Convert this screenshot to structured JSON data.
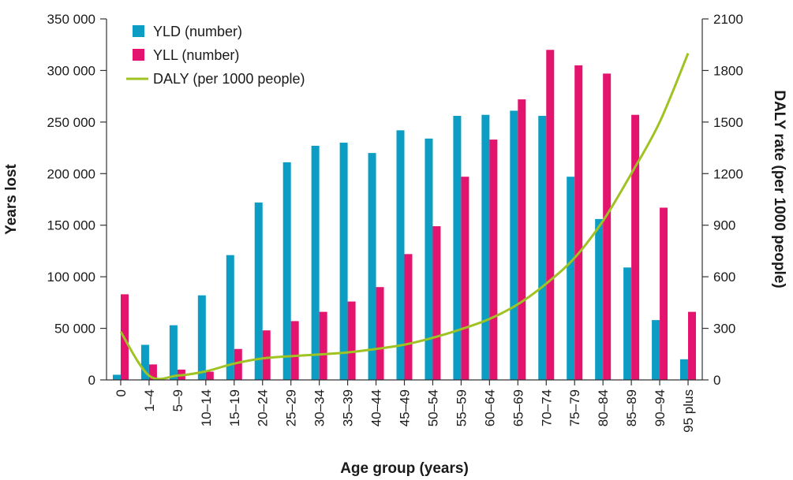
{
  "chart_data": {
    "type": "bar",
    "categories": [
      "0",
      "1–4",
      "5–9",
      "10–14",
      "15–19",
      "20–24",
      "25–29",
      "30–34",
      "35–39",
      "40–44",
      "45–49",
      "50–54",
      "55–59",
      "60–64",
      "65–69",
      "70–74",
      "75–79",
      "80–84",
      "85–89",
      "90–94",
      "95 plus"
    ],
    "series": [
      {
        "name": "YLD (number)",
        "type": "bar",
        "axis": "left",
        "color": "#0c9dc4",
        "values": [
          5000,
          34000,
          53000,
          82000,
          121000,
          172000,
          211000,
          227000,
          230000,
          220000,
          242000,
          234000,
          256000,
          257000,
          261000,
          256000,
          197000,
          156000,
          109000,
          58000,
          20000
        ]
      },
      {
        "name": "YLL (number)",
        "type": "bar",
        "axis": "left",
        "color": "#e4136e",
        "values": [
          83000,
          15000,
          10000,
          8000,
          30000,
          48000,
          57000,
          66000,
          76000,
          90000,
          122000,
          149000,
          197000,
          233000,
          272000,
          320000,
          305000,
          297000,
          257000,
          167000,
          66000
        ]
      },
      {
        "name": "DALY (per 1000 people)",
        "type": "line",
        "axis": "right",
        "color": "#9fc322",
        "values": [
          280,
          25,
          25,
          50,
          95,
          125,
          138,
          148,
          160,
          180,
          205,
          245,
          295,
          355,
          440,
          560,
          710,
          925,
          1200,
          1500,
          1900
        ]
      }
    ],
    "xlabel": "Age group (years)",
    "ylabel": "Years lost",
    "y2label": "DALY rate (per 1000 people)",
    "ylim": [
      0,
      350000
    ],
    "yticks": [
      "0",
      "50 000",
      "100 000",
      "150 000",
      "200 000",
      "250 000",
      "300 000",
      "350 000"
    ],
    "y2lim": [
      0,
      2100
    ],
    "y2ticks": [
      "0",
      "300",
      "600",
      "900",
      "1200",
      "1500",
      "1800",
      "2100"
    ],
    "legend_position": "top-left",
    "grid": false
  }
}
